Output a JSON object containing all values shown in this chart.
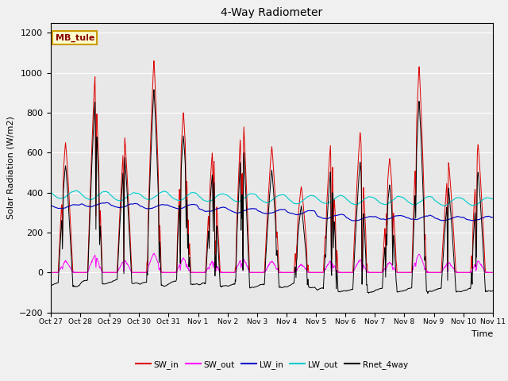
{
  "title": "4-Way Radiometer",
  "ylabel": "Solar Radiation (W/m2)",
  "xlabel": "Time",
  "ylim": [
    -200,
    1250
  ],
  "annotation": "MB_tule",
  "fig_facecolor": "#f0f0f0",
  "ax_facecolor": "#e8e8e8",
  "tick_labels": [
    "Oct 27",
    "Oct 28",
    "Oct 29",
    "Oct 30",
    "Oct 31",
    "Nov 1",
    "Nov 2",
    "Nov 3",
    "Nov 4",
    "Nov 5",
    "Nov 6",
    "Nov 7",
    "Nov 8",
    "Nov 9",
    "Nov 10",
    "Nov 11"
  ],
  "tick_positions": [
    0,
    24,
    48,
    72,
    96,
    120,
    144,
    168,
    192,
    216,
    240,
    264,
    288,
    312,
    336,
    360
  ],
  "yticks": [
    -200,
    0,
    200,
    400,
    600,
    800,
    1000,
    1200
  ],
  "total_hours": 360,
  "legend_colors": {
    "SW_in": "#dd0000",
    "SW_out": "#ff00ff",
    "LW_in": "#0000cc",
    "LW_out": "#00cccc",
    "Rnet_4way": "#000000"
  }
}
